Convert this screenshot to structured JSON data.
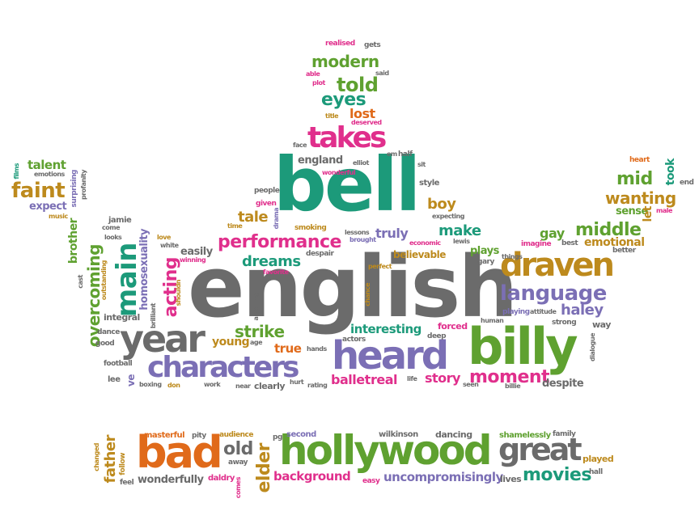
{
  "palette": {
    "green": "#5fa130",
    "teal": "#1c9a7a",
    "gray": "#6b6b6b",
    "purple": "#7b6fb5",
    "pink": "#e02f8c",
    "orange": "#e06a1a",
    "gold": "#bd8a1d"
  },
  "words": {
    "english": "english",
    "bell": "bell",
    "billy": "billy",
    "hollywood": "hollywood",
    "heard": "heard",
    "bad": "bad",
    "year": "year",
    "characters": "characters",
    "draven": "draven",
    "takes": "takes",
    "great": "great",
    "language": "language",
    "main": "main",
    "performance": "performance",
    "middle": "middle",
    "wanting": "wanting",
    "moment": "moment",
    "movies": "movies",
    "overcoming": "overcoming",
    "faint": "faint",
    "told": "told",
    "eyes": "eyes",
    "modern": "modern",
    "elder": "elder",
    "old": "old",
    "father": "father",
    "strike": "strike",
    "acting": "acting",
    "dreams": "dreams",
    "interesting": "interesting",
    "story": "story",
    "ballet": "ballet",
    "real": "real",
    "truly": "truly",
    "make": "make",
    "boy": "boy",
    "mid": "mid",
    "haley": "haley",
    "emotional": "emotional",
    "gay": "gay",
    "tale": "tale",
    "lost": "lost",
    "uncompromisingly": "uncompromisingly",
    "background": "background",
    "wonderfully": "wonderfully",
    "talent": "talent",
    "expect": "expect",
    "brother": "brother",
    "homosexuality": "homosexuality",
    "england": "england",
    "young": "young",
    "true": "true",
    "believable": "believable",
    "plays": "plays",
    "sense": "sense",
    "took": "took",
    "let": "let",
    "easily": "easily",
    "despite": "despite",
    "dancing": "dancing",
    "played": "played",
    "shamelessly": "shamelessly",
    "wilkinson": "wilkinson",
    "second": "second",
    "audience": "audience",
    "masterful": "masterful",
    "lives": "lives",
    "easy": "easy",
    "daldry": "daldry",
    "away": "away",
    "pg": "pg",
    "family": "family",
    "hall": "hall",
    "pity": "pity",
    "follow": "follow",
    "feel": "feel",
    "changed": "changed",
    "ve": "ve",
    "lee": "lee",
    "football": "football",
    "good": "good",
    "dance": "dance",
    "boxing": "boxing",
    "don": "don",
    "work": "work",
    "near": "near",
    "clearly": "clearly",
    "hurt": "hurt",
    "rating": "rating",
    "life": "life",
    "seen": "seen",
    "billie": "billie",
    "integral": "integral",
    "brilliant": "brilliant",
    "outstanding": "outstanding",
    "cast": "cast",
    "looks": "looks",
    "jamie": "jamie",
    "love": "love",
    "white": "white",
    "winning": "winning",
    "shouldn": "shouldn",
    "favorite": "favorite",
    "amazing": "amazing",
    "age": "age",
    "hands": "hands",
    "actors": "actors",
    "chance": "chance",
    "perfect": "perfect",
    "deep": "deep",
    "forced": "forced",
    "human": "human",
    "strong": "strong",
    "way": "way",
    "dialogue": "dialogue",
    "playing": "playing",
    "attitude": "attitude",
    "better": "better",
    "best": "best",
    "imagine": "imagine",
    "things": "things",
    "gary": "gary",
    "lewis": "lewis",
    "economic": "economic",
    "despair": "despair",
    "lessons": "lessons",
    "brought": "brought",
    "smoking": "smoking",
    "expecting": "expecting",
    "style": "style",
    "sit": "sit",
    "given": "given",
    "people": "people",
    "drama": "drama",
    "time": "time",
    "wonderful": "wonderful",
    "elliot": "elliot",
    "face": "face",
    "half": "half",
    "em": "em",
    "deserved": "deserved",
    "title": "title",
    "plot": "plot",
    "able": "able",
    "said": "said",
    "realised": "realised",
    "gets": "gets",
    "come": "come",
    "music": "music",
    "emotions": "emotions",
    "surprising": "surprising",
    "profanity": "profanity",
    "films": "films",
    "heart": "heart",
    "male": "male",
    "end": "end",
    "comes": "comes"
  }
}
